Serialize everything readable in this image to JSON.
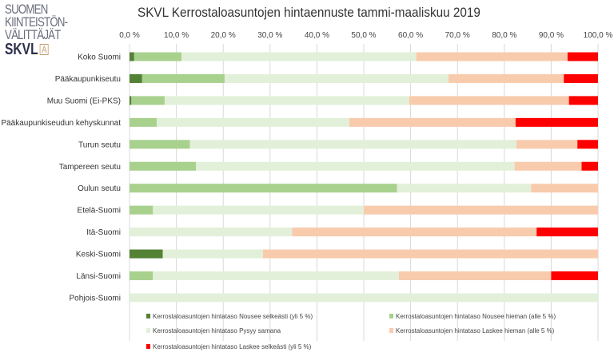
{
  "logo": {
    "line1": "SUOMEN",
    "line2": "KIINTEISTÖN-",
    "line3": "VÄLITTÄJÄT",
    "brand": "SKVL",
    "mark": "A"
  },
  "chart_data": {
    "type": "bar",
    "orientation": "horizontal",
    "stacked": "100%",
    "title": "SKVL Kerrostaloasuntojen hintaennuste tammi-maaliskuu 2019",
    "xlim": [
      0,
      100
    ],
    "xticks": [
      "0,0 %",
      "10,0 %",
      "20,0 %",
      "30,0 %",
      "40,0 %",
      "50,0 %",
      "60,0 %",
      "70,0 %",
      "80,0 %",
      "90,0 %",
      "100,0 %"
    ],
    "xaxis_position": "top",
    "grid": true,
    "legend_position": "bottom",
    "categories": [
      "Koko Suomi",
      "Pääkaupunkiseutu",
      "Muu Suomi (Ei-PKS)",
      "Pääkaupunkiseudun kehyskunnat",
      "Turun seutu",
      "Tampereen seutu",
      "Oulun seutu",
      "Etelä-Suomi",
      "Itä-Suomi",
      "Keski-Suomi",
      "Länsi-Suomi",
      "Pohjois-Suomi"
    ],
    "series": [
      {
        "name": "Kerrostaloasuntojen hintataso Nousee selkeästi (yli 5 %)",
        "color": "#548235",
        "values": [
          1.0,
          2.7,
          0.4,
          0,
          0,
          0,
          0,
          0,
          0,
          7.1,
          0,
          0
        ]
      },
      {
        "name": "Kerrostaloasuntojen hintataso Nousee hieman (alle 5 %)",
        "color": "#a9d18e",
        "values": [
          10.1,
          17.6,
          7.1,
          5.8,
          12.9,
          14.2,
          57.1,
          5.0,
          0,
          0,
          5.0,
          0
        ]
      },
      {
        "name": "Kerrostaloasuntojen hintataso Pysyy samana",
        "color": "#e2f0d9",
        "values": [
          50.1,
          47.8,
          52.2,
          41.1,
          69.7,
          68.0,
          28.6,
          45.0,
          34.7,
          21.4,
          52.5,
          100
        ]
      },
      {
        "name": "Kerrostaloasuntojen hintataso Laskee hieman (alle 5 %)",
        "color": "#f8cbad",
        "values": [
          32.3,
          24.6,
          34.1,
          35.5,
          13.0,
          14.3,
          14.3,
          50.0,
          52.2,
          71.5,
          32.5,
          0
        ]
      },
      {
        "name": "Kerrostaloasuntojen hintataso Laskee selkeästi (yli 5 %)",
        "color": "#ff0000",
        "values": [
          6.5,
          7.3,
          6.2,
          17.6,
          4.4,
          3.5,
          0,
          0,
          13.1,
          0,
          10.0,
          0
        ]
      }
    ]
  }
}
